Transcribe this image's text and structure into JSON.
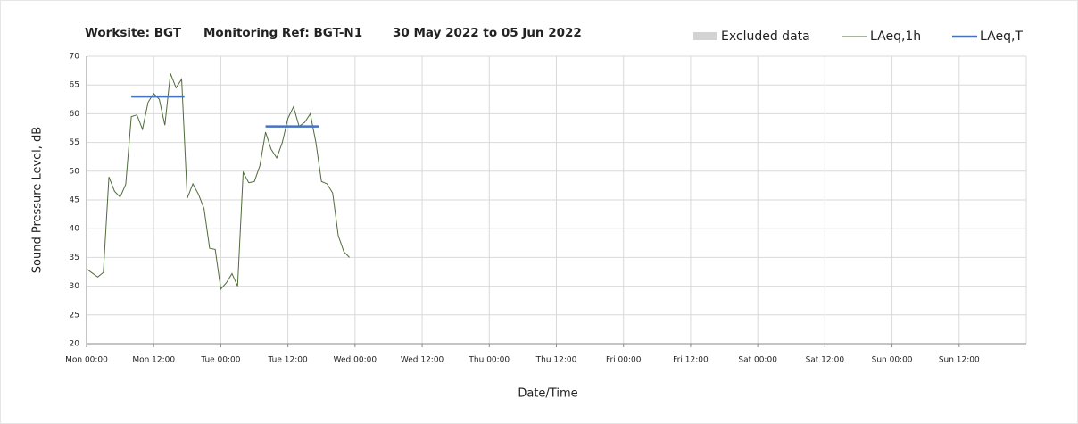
{
  "chart_data": {
    "type": "line",
    "title": [
      "Worksite: BGT",
      "Monitoring Ref: BGT-N1",
      "30 May 2022 to 05 Jun 2022"
    ],
    "ylabel": "Sound Pressure Level, dB",
    "xlabel": "Date/Time",
    "xlim": [
      0,
      168
    ],
    "ylim": [
      20,
      70
    ],
    "yticks": [
      20,
      25,
      30,
      35,
      40,
      45,
      50,
      55,
      60,
      65,
      70
    ],
    "xticks": [
      {
        "value": 0,
        "label": "Mon 00:00"
      },
      {
        "value": 12,
        "label": "Mon 12:00"
      },
      {
        "value": 24,
        "label": "Tue 00:00"
      },
      {
        "value": 36,
        "label": "Tue 12:00"
      },
      {
        "value": 48,
        "label": "Wed 00:00"
      },
      {
        "value": 60,
        "label": "Wed 12:00"
      },
      {
        "value": 72,
        "label": "Thu 00:00"
      },
      {
        "value": 84,
        "label": "Thu 12:00"
      },
      {
        "value": 96,
        "label": "Fri 00:00"
      },
      {
        "value": 108,
        "label": "Fri 12:00"
      },
      {
        "value": 120,
        "label": "Sat 00:00"
      },
      {
        "value": 132,
        "label": "Sat 12:00"
      },
      {
        "value": 144,
        "label": "Sun 00:00"
      },
      {
        "value": 156,
        "label": "Sun 12:00"
      }
    ],
    "grid": true,
    "excluded": {
      "name": "Excluded data",
      "color": "#d3d3d3"
    },
    "series": [
      {
        "name": "LAeq,1h",
        "color": "#4f6b3a",
        "width": 1,
        "x": [
          0,
          1,
          2,
          3,
          4,
          5,
          6,
          7,
          8,
          9,
          10,
          11,
          12,
          13,
          14,
          15,
          16,
          17,
          18,
          19,
          20,
          21,
          22,
          23,
          24,
          25,
          26,
          27,
          28,
          29,
          30,
          31,
          32,
          33,
          34,
          35,
          36,
          37,
          38,
          39,
          40,
          41,
          42,
          43,
          44,
          45,
          46,
          47
        ],
        "values": [
          33,
          32.3,
          31.6,
          32.4,
          49,
          46.5,
          45.5,
          47.7,
          59.5,
          59.8,
          57.3,
          62,
          63.5,
          62.5,
          58,
          67,
          64.5,
          66,
          45.3,
          47.8,
          46,
          43.5,
          36.6,
          36.4,
          29.5,
          30.6,
          32.2,
          30,
          49.8,
          48,
          48.2,
          51,
          56.8,
          53.8,
          52.3,
          55,
          59.2,
          61.2,
          57.8,
          58.5,
          60,
          55,
          48.2,
          47.8,
          46.2,
          38.8,
          36,
          35
        ]
      },
      {
        "name": "LAeq,T",
        "color": "#4472c4",
        "width": 2.5,
        "x": [
          8,
          17.5,
          24,
          32,
          41.5
        ],
        "values": [
          63,
          63,
          null,
          57.8,
          57.8
        ]
      }
    ]
  }
}
